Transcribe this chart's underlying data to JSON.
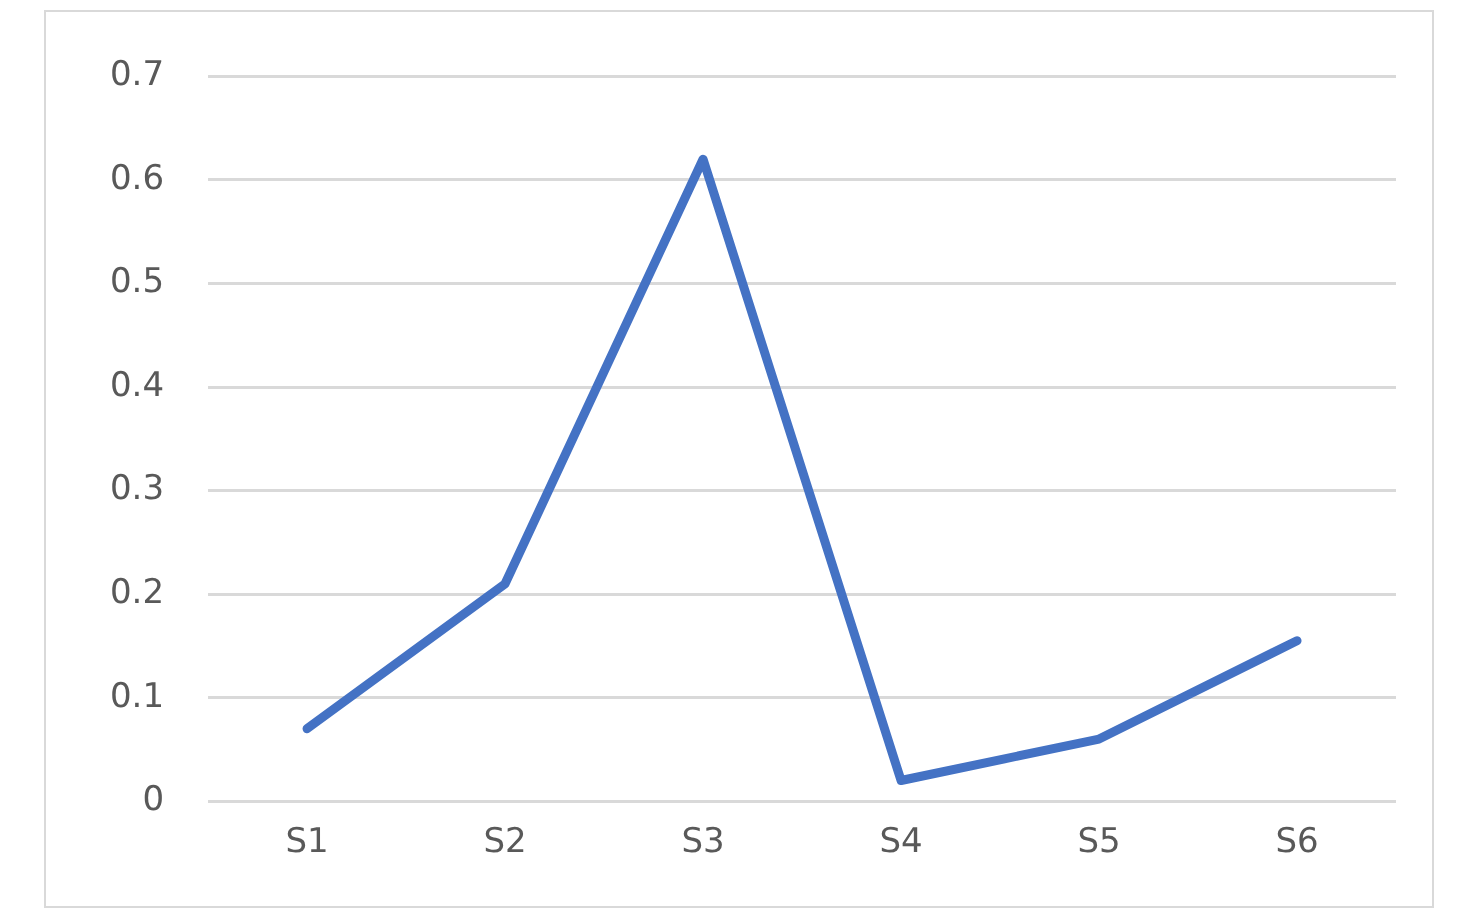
{
  "chart_data": {
    "type": "line",
    "categories": [
      "S1",
      "S2",
      "S3",
      "S4",
      "S5",
      "S6"
    ],
    "series": [
      {
        "color": "#4472c4",
        "values": [
          0.07,
          0.21,
          0.62,
          0.02,
          0.06,
          0.155
        ]
      }
    ],
    "ylim": [
      0,
      0.7
    ],
    "yticks": [
      0,
      0.1,
      0.2,
      0.3,
      0.4,
      0.5,
      0.6,
      0.7
    ],
    "grid": "y",
    "legend": false,
    "marker": "none",
    "line_style": "solid"
  }
}
